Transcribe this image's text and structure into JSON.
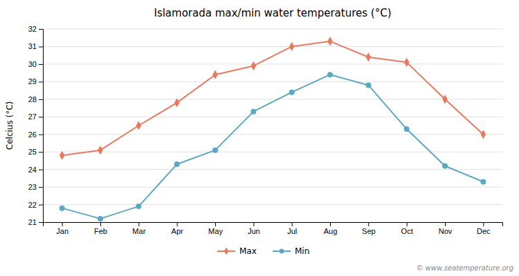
{
  "chart_data": {
    "type": "line",
    "title": "Islamorada max/min water temperatures (°C)",
    "ylabel": "Celcius (°C)",
    "categories": [
      "Jan",
      "Feb",
      "Mar",
      "Apr",
      "May",
      "Jun",
      "Jul",
      "Aug",
      "Sep",
      "Oct",
      "Nov",
      "Dec"
    ],
    "series": [
      {
        "name": "Max",
        "color": "#e8795f",
        "marker": "diamond",
        "values": [
          24.8,
          25.1,
          26.5,
          27.8,
          29.4,
          29.9,
          31.0,
          31.3,
          30.4,
          30.1,
          28.0,
          26.0
        ]
      },
      {
        "name": "Min",
        "color": "#5ba8c4",
        "marker": "circle",
        "values": [
          21.8,
          21.2,
          21.9,
          24.3,
          25.1,
          27.3,
          28.4,
          29.4,
          28.8,
          26.3,
          24.2,
          23.3
        ]
      }
    ],
    "ylim": [
      21,
      32
    ],
    "yticks": [
      21,
      22,
      23,
      24,
      25,
      26,
      27,
      28,
      29,
      30,
      31,
      32
    ],
    "grid": true,
    "legend": "bottom",
    "annotations": [
      "© www.seatemperature.org"
    ]
  }
}
